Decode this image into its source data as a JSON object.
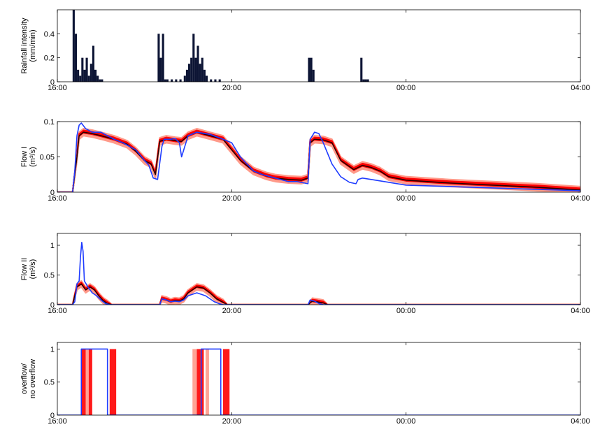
{
  "colors": {
    "rain": "#0d1535",
    "ensemble_light": "#ff9a8a",
    "ensemble": "#ff0000",
    "ensemble_dark": "#2a0000",
    "observed": "#1f3cff"
  },
  "chart_data": [
    {
      "type": "bar",
      "ylabel_line1": "Rainfall intensity",
      "ylabel_line2": "(mm/min)",
      "x_unit": "hours since 16:00",
      "xlim": [
        0,
        12
      ],
      "xticks": [
        "16:00",
        "20:00",
        "00:00",
        "04:00"
      ],
      "ylim": [
        0,
        0.6
      ],
      "yticks": [
        "0",
        "0.2",
        "0.4"
      ],
      "series": [
        {
          "bars": [
            [
              0.35,
              0.6
            ],
            [
              0.4,
              0.4
            ],
            [
              0.45,
              0.1
            ],
            [
              0.5,
              0.05
            ],
            [
              0.55,
              0.2
            ],
            [
              0.6,
              0.1
            ],
            [
              0.65,
              0.2
            ],
            [
              0.7,
              0.05
            ],
            [
              0.75,
              0.15
            ],
            [
              0.8,
              0.3
            ],
            [
              0.85,
              0.1
            ],
            [
              0.9,
              0.05
            ],
            [
              0.95,
              0.02
            ],
            [
              1.0,
              0.02
            ],
            [
              2.3,
              0.4
            ],
            [
              2.35,
              0.2
            ],
            [
              2.4,
              0.4
            ],
            [
              2.45,
              0.02
            ],
            [
              2.5,
              0.02
            ],
            [
              2.6,
              0.02
            ],
            [
              2.7,
              0.02
            ],
            [
              2.8,
              0.02
            ],
            [
              2.9,
              0.05
            ],
            [
              2.95,
              0.1
            ],
            [
              3.0,
              0.15
            ],
            [
              3.05,
              0.2
            ],
            [
              3.1,
              0.4
            ],
            [
              3.15,
              0.2
            ],
            [
              3.2,
              0.3
            ],
            [
              3.25,
              0.15
            ],
            [
              3.3,
              0.2
            ],
            [
              3.35,
              0.1
            ],
            [
              3.4,
              0.05
            ],
            [
              3.5,
              0.02
            ],
            [
              3.6,
              0.02
            ],
            [
              3.7,
              0.02
            ],
            [
              5.75,
              0.2
            ],
            [
              5.8,
              0.2
            ],
            [
              5.85,
              0.1
            ],
            [
              6.95,
              0.2
            ],
            [
              7.0,
              0.02
            ],
            [
              7.05,
              0.02
            ],
            [
              7.1,
              0.02
            ]
          ],
          "bar_width": 0.05
        }
      ]
    },
    {
      "type": "line",
      "ylabel_line1": "Flow I",
      "ylabel_line2": "(m³/s)",
      "x_unit": "hours since 16:00",
      "xlim": [
        0,
        12
      ],
      "xticks": [
        "16:00",
        "20:00",
        "00:00",
        "04:00"
      ],
      "ylim": [
        0,
        0.1
      ],
      "yticks": [
        "0",
        "0.05",
        "0.1"
      ],
      "series": [
        {
          "name": "",
          "kind": "observed",
          "points": [
            [
              0,
              0
            ],
            [
              0.35,
              0
            ],
            [
              0.4,
              0.03
            ],
            [
              0.45,
              0.08
            ],
            [
              0.5,
              0.095
            ],
            [
              0.55,
              0.098
            ],
            [
              0.65,
              0.09
            ],
            [
              0.8,
              0.085
            ],
            [
              1.0,
              0.085
            ],
            [
              1.3,
              0.075
            ],
            [
              1.5,
              0.07
            ],
            [
              1.8,
              0.06
            ],
            [
              2.0,
              0.045
            ],
            [
              2.1,
              0.038
            ],
            [
              2.2,
              0.02
            ],
            [
              2.3,
              0.018
            ],
            [
              2.4,
              0.065
            ],
            [
              2.45,
              0.075
            ],
            [
              2.6,
              0.075
            ],
            [
              2.7,
              0.076
            ],
            [
              2.8,
              0.07
            ],
            [
              2.85,
              0.05
            ],
            [
              2.9,
              0.06
            ],
            [
              3.0,
              0.08
            ],
            [
              3.2,
              0.085
            ],
            [
              3.5,
              0.082
            ],
            [
              3.8,
              0.075
            ],
            [
              4.0,
              0.07
            ],
            [
              4.2,
              0.05
            ],
            [
              4.5,
              0.03
            ],
            [
              4.7,
              0.025
            ],
            [
              5.0,
              0.02
            ],
            [
              5.3,
              0.015
            ],
            [
              5.5,
              0.015
            ],
            [
              5.75,
              0.012
            ],
            [
              5.8,
              0.075
            ],
            [
              5.9,
              0.085
            ],
            [
              6.0,
              0.083
            ],
            [
              6.1,
              0.07
            ],
            [
              6.3,
              0.04
            ],
            [
              6.5,
              0.022
            ],
            [
              6.7,
              0.014
            ],
            [
              6.85,
              0.012
            ],
            [
              6.9,
              0.018
            ],
            [
              7.0,
              0.02
            ],
            [
              7.2,
              0.018
            ],
            [
              7.5,
              0.015
            ],
            [
              8.0,
              0.01
            ],
            [
              9.0,
              0.008
            ],
            [
              10.0,
              0.006
            ],
            [
              11.0,
              0.004
            ],
            [
              12.0,
              0.002
            ]
          ]
        },
        {
          "name": "",
          "kind": "ensemble_mean",
          "points": [
            [
              0,
              0
            ],
            [
              0.35,
              0
            ],
            [
              0.45,
              0.05
            ],
            [
              0.5,
              0.08
            ],
            [
              0.6,
              0.085
            ],
            [
              0.8,
              0.083
            ],
            [
              1.0,
              0.08
            ],
            [
              1.3,
              0.075
            ],
            [
              1.6,
              0.068
            ],
            [
              1.8,
              0.058
            ],
            [
              2.0,
              0.045
            ],
            [
              2.15,
              0.04
            ],
            [
              2.25,
              0.025
            ],
            [
              2.35,
              0.072
            ],
            [
              2.5,
              0.075
            ],
            [
              2.7,
              0.073
            ],
            [
              2.85,
              0.072
            ],
            [
              3.0,
              0.08
            ],
            [
              3.2,
              0.085
            ],
            [
              3.5,
              0.08
            ],
            [
              3.8,
              0.075
            ],
            [
              4.0,
              0.06
            ],
            [
              4.2,
              0.045
            ],
            [
              4.5,
              0.03
            ],
            [
              4.8,
              0.023
            ],
            [
              5.0,
              0.02
            ],
            [
              5.3,
              0.018
            ],
            [
              5.6,
              0.017
            ],
            [
              5.75,
              0.02
            ],
            [
              5.8,
              0.07
            ],
            [
              5.9,
              0.075
            ],
            [
              6.1,
              0.074
            ],
            [
              6.3,
              0.07
            ],
            [
              6.5,
              0.045
            ],
            [
              6.8,
              0.032
            ],
            [
              7.0,
              0.038
            ],
            [
              7.2,
              0.035
            ],
            [
              7.4,
              0.03
            ],
            [
              7.6,
              0.022
            ],
            [
              8.0,
              0.017
            ],
            [
              9.0,
              0.013
            ],
            [
              10.0,
              0.01
            ],
            [
              11.0,
              0.007
            ],
            [
              12.0,
              0.003
            ]
          ]
        }
      ],
      "band": {
        "offset": 0.005,
        "layers": 8
      }
    },
    {
      "type": "line",
      "ylabel_line1": "Flow II",
      "ylabel_line2": "(m³/s)",
      "x_unit": "hours since 16:00",
      "xlim": [
        0,
        12
      ],
      "xticks": [
        "16:00",
        "20:00",
        "00:00",
        "04:00"
      ],
      "ylim": [
        0,
        1.2
      ],
      "yticks": [
        "0",
        "0.5",
        "1"
      ],
      "series": [
        {
          "name": "",
          "kind": "observed",
          "points": [
            [
              0,
              0
            ],
            [
              0.35,
              0
            ],
            [
              0.4,
              0.05
            ],
            [
              0.45,
              0.35
            ],
            [
              0.5,
              0.4
            ],
            [
              0.53,
              0.8
            ],
            [
              0.56,
              1.05
            ],
            [
              0.59,
              0.9
            ],
            [
              0.62,
              0.4
            ],
            [
              0.7,
              0.3
            ],
            [
              0.8,
              0.2
            ],
            [
              0.9,
              0.15
            ],
            [
              1.0,
              0.08
            ],
            [
              1.1,
              0.02
            ],
            [
              1.2,
              0
            ],
            [
              2.35,
              0
            ],
            [
              2.4,
              0.1
            ],
            [
              2.5,
              0.08
            ],
            [
              2.6,
              0.05
            ],
            [
              2.7,
              0.06
            ],
            [
              2.8,
              0.05
            ],
            [
              2.9,
              0.08
            ],
            [
              3.0,
              0.15
            ],
            [
              3.2,
              0.2
            ],
            [
              3.4,
              0.15
            ],
            [
              3.5,
              0.1
            ],
            [
              3.6,
              0.05
            ],
            [
              3.7,
              0.02
            ],
            [
              3.8,
              0
            ],
            [
              5.75,
              0
            ],
            [
              5.8,
              0.08
            ],
            [
              5.9,
              0.06
            ],
            [
              6.0,
              0.02
            ],
            [
              6.1,
              0
            ],
            [
              12,
              0
            ]
          ]
        },
        {
          "name": "",
          "kind": "ensemble_mean",
          "points": [
            [
              0,
              0
            ],
            [
              0.35,
              0
            ],
            [
              0.45,
              0.3
            ],
            [
              0.55,
              0.35
            ],
            [
              0.65,
              0.25
            ],
            [
              0.75,
              0.3
            ],
            [
              0.85,
              0.25
            ],
            [
              0.95,
              0.15
            ],
            [
              1.05,
              0.07
            ],
            [
              1.15,
              0.02
            ],
            [
              1.25,
              0
            ],
            [
              2.35,
              0
            ],
            [
              2.4,
              0.1
            ],
            [
              2.5,
              0.08
            ],
            [
              2.6,
              0.05
            ],
            [
              2.7,
              0.07
            ],
            [
              2.8,
              0.06
            ],
            [
              2.9,
              0.1
            ],
            [
              3.0,
              0.2
            ],
            [
              3.2,
              0.3
            ],
            [
              3.35,
              0.28
            ],
            [
              3.5,
              0.2
            ],
            [
              3.65,
              0.1
            ],
            [
              3.8,
              0.04
            ],
            [
              3.9,
              0
            ],
            [
              5.75,
              0
            ],
            [
              5.85,
              0.06
            ],
            [
              5.95,
              0.05
            ],
            [
              6.1,
              0.03
            ],
            [
              6.2,
              0
            ],
            [
              12,
              0
            ]
          ]
        }
      ],
      "band": {
        "offset": 0.05,
        "layers": 8
      }
    },
    {
      "type": "line",
      "ylabel_line1": "overflow/",
      "ylabel_line2": "no overflow",
      "x_unit": "hours since 16:00",
      "xlim": [
        0,
        12
      ],
      "xticks": [
        "16:00",
        "20:00",
        "00:00",
        "04:00"
      ],
      "ylim": [
        0,
        1.1
      ],
      "yticks": [
        "0",
        "0.5",
        "1"
      ],
      "red_blocks": [
        [
          0.55,
          0.65
        ],
        [
          0.65,
          0.72
        ],
        [
          0.72,
          0.8
        ],
        [
          1.2,
          1.35
        ],
        [
          3.1,
          3.2
        ],
        [
          3.2,
          3.28
        ],
        [
          3.28,
          3.36
        ],
        [
          3.4,
          3.48
        ],
        [
          3.8,
          3.95
        ]
      ],
      "series": [
        {
          "name": "",
          "kind": "observed",
          "points": [
            [
              0,
              0
            ],
            [
              0.55,
              0
            ],
            [
              0.55,
              1
            ],
            [
              1.15,
              1
            ],
            [
              1.15,
              0
            ],
            [
              3.3,
              0
            ],
            [
              3.3,
              1
            ],
            [
              3.75,
              1
            ],
            [
              3.75,
              0
            ],
            [
              12,
              0
            ]
          ]
        }
      ]
    }
  ]
}
